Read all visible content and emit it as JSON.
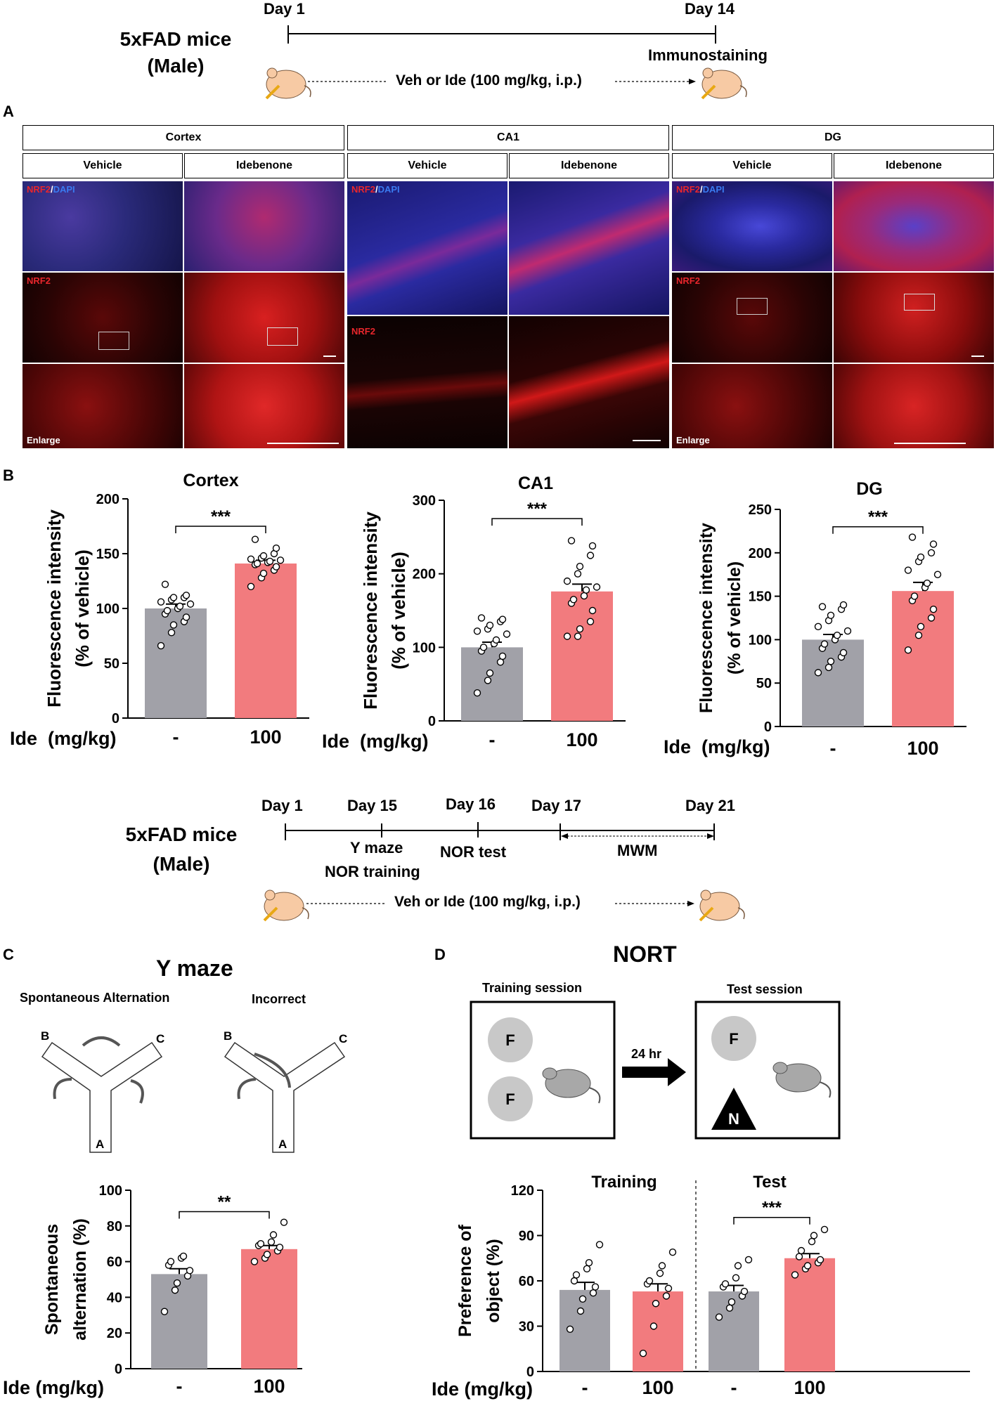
{
  "timeline1": {
    "title_line1": "5xFAD mice",
    "title_line2": "(Male)",
    "day_start": "Day 1",
    "day_end": "Day 14",
    "endpoint": "Immunostaining",
    "treatment": "Veh or Ide (100 mg/kg, i.p.)"
  },
  "panel_a": {
    "letter": "A",
    "regions": [
      "Cortex",
      "CA1",
      "DG"
    ],
    "conditions": [
      "Vehicle",
      "Idebenone",
      "Vehicle",
      "Idebenone",
      "Vehicle",
      "Idebenone"
    ],
    "label_nrf2": "NRF2",
    "label_slash": "/",
    "label_dapi": "DAPI",
    "label_enlarge": "Enlarge"
  },
  "panel_b": {
    "letter": "B",
    "xlabel_prefix": "Ide  (mg/kg)"
  },
  "timeline2": {
    "title_line1": "5xFAD mice",
    "title_line2": "(Male)",
    "days": [
      "Day 1",
      "Day 15",
      "Day 16",
      "Day 17",
      "Day 21"
    ],
    "tests": [
      "Y maze",
      "NOR training",
      "NOR test",
      "MWM"
    ],
    "treatment": "Veh or Ide (100 mg/kg, i.p.)"
  },
  "panel_c": {
    "letter": "C",
    "title": "Y maze",
    "left_label": "Spontaneous Alternation",
    "right_label": "Incorrect",
    "arms": [
      "A",
      "B",
      "C"
    ],
    "xlabel_prefix": "Ide (mg/kg)"
  },
  "panel_d": {
    "letter": "D",
    "title": "NORT",
    "training_label": "Training session",
    "test_label": "Test session",
    "interval": "24 hr",
    "familiar": "F",
    "novel": "N",
    "xlabel_prefix": "Ide (mg/kg)"
  },
  "colors": {
    "vehicle": "#a1a1a8",
    "idebenone": "#f27b7e",
    "nrf2": "#e8262c",
    "dapi": "#2e5ee8"
  },
  "chart_data": [
    {
      "id": "cortex",
      "type": "bar",
      "title": "Cortex",
      "ylabel": "Fluorescence intensity\n(% of vehicle)",
      "categories": [
        "-",
        "100"
      ],
      "values": [
        100,
        141
      ],
      "sem": [
        4,
        3
      ],
      "ylim": [
        0,
        200
      ],
      "yticks": [
        0,
        50,
        100,
        150,
        200
      ],
      "significance": "***",
      "points": [
        [
          66,
          78,
          85,
          88,
          92,
          95,
          98,
          100,
          102,
          104,
          106,
          108,
          110,
          110,
          112,
          122
        ],
        [
          120,
          128,
          132,
          135,
          138,
          140,
          141,
          142,
          143,
          144,
          145,
          146,
          148,
          150,
          155,
          163
        ]
      ]
    },
    {
      "id": "ca1",
      "type": "bar",
      "title": "CA1",
      "ylabel": "Fluorescence intensity\n(% of vehicle)",
      "categories": [
        "-",
        "100"
      ],
      "values": [
        100,
        176
      ],
      "sem": [
        7,
        10
      ],
      "ylim": [
        0,
        300
      ],
      "yticks": [
        0,
        100,
        200,
        300
      ],
      "significance": "***",
      "points": [
        [
          38,
          55,
          65,
          80,
          88,
          95,
          100,
          105,
          110,
          118,
          122,
          125,
          130,
          135,
          138,
          140
        ],
        [
          115,
          115,
          125,
          135,
          150,
          160,
          165,
          170,
          178,
          182,
          190,
          200,
          210,
          225,
          238,
          245
        ]
      ]
    },
    {
      "id": "dg",
      "type": "bar",
      "title": "DG",
      "ylabel": "Fluorescence intensity\n(% of vehicle)",
      "categories": [
        "-",
        "100"
      ],
      "values": [
        100,
        156
      ],
      "sem": [
        6,
        10
      ],
      "ylim": [
        0,
        250
      ],
      "yticks": [
        0,
        50,
        100,
        150,
        200,
        250
      ],
      "significance": "***",
      "points": [
        [
          62,
          68,
          75,
          80,
          85,
          90,
          95,
          100,
          105,
          110,
          115,
          122,
          128,
          135,
          140,
          138
        ],
        [
          88,
          105,
          115,
          125,
          135,
          145,
          150,
          160,
          165,
          175,
          180,
          190,
          195,
          200,
          210,
          218
        ]
      ]
    },
    {
      "id": "ymaze",
      "type": "bar",
      "title": "",
      "ylabel": "Spontaneous\nalternation (%)",
      "categories": [
        "-",
        "100"
      ],
      "values": [
        53,
        67
      ],
      "sem": [
        3,
        2
      ],
      "ylim": [
        0,
        100
      ],
      "yticks": [
        0,
        20,
        40,
        60,
        80,
        100
      ],
      "significance": "**",
      "points": [
        [
          32,
          44,
          48,
          52,
          55,
          58,
          60,
          62,
          63
        ],
        [
          60,
          62,
          64,
          66,
          68,
          69,
          70,
          71,
          75,
          82
        ]
      ]
    },
    {
      "id": "nort",
      "type": "bar",
      "title": "",
      "ylabel": "Preference of\nobject (%)",
      "groups": [
        "Training",
        "Test"
      ],
      "categories": [
        "-",
        "100",
        "-",
        "100"
      ],
      "values": [
        54,
        53,
        53,
        75
      ],
      "sem": [
        5,
        5,
        4,
        3
      ],
      "ylim": [
        0,
        120
      ],
      "yticks": [
        0,
        30,
        60,
        90,
        120
      ],
      "significance": "***",
      "points": [
        [
          28,
          40,
          48,
          52,
          56,
          60,
          64,
          68,
          72,
          84
        ],
        [
          12,
          30,
          45,
          50,
          55,
          58,
          60,
          65,
          70,
          79
        ],
        [
          36,
          42,
          46,
          50,
          53,
          56,
          58,
          62,
          70,
          74
        ],
        [
          64,
          68,
          70,
          72,
          74,
          76,
          80,
          86,
          90,
          94
        ]
      ]
    }
  ]
}
